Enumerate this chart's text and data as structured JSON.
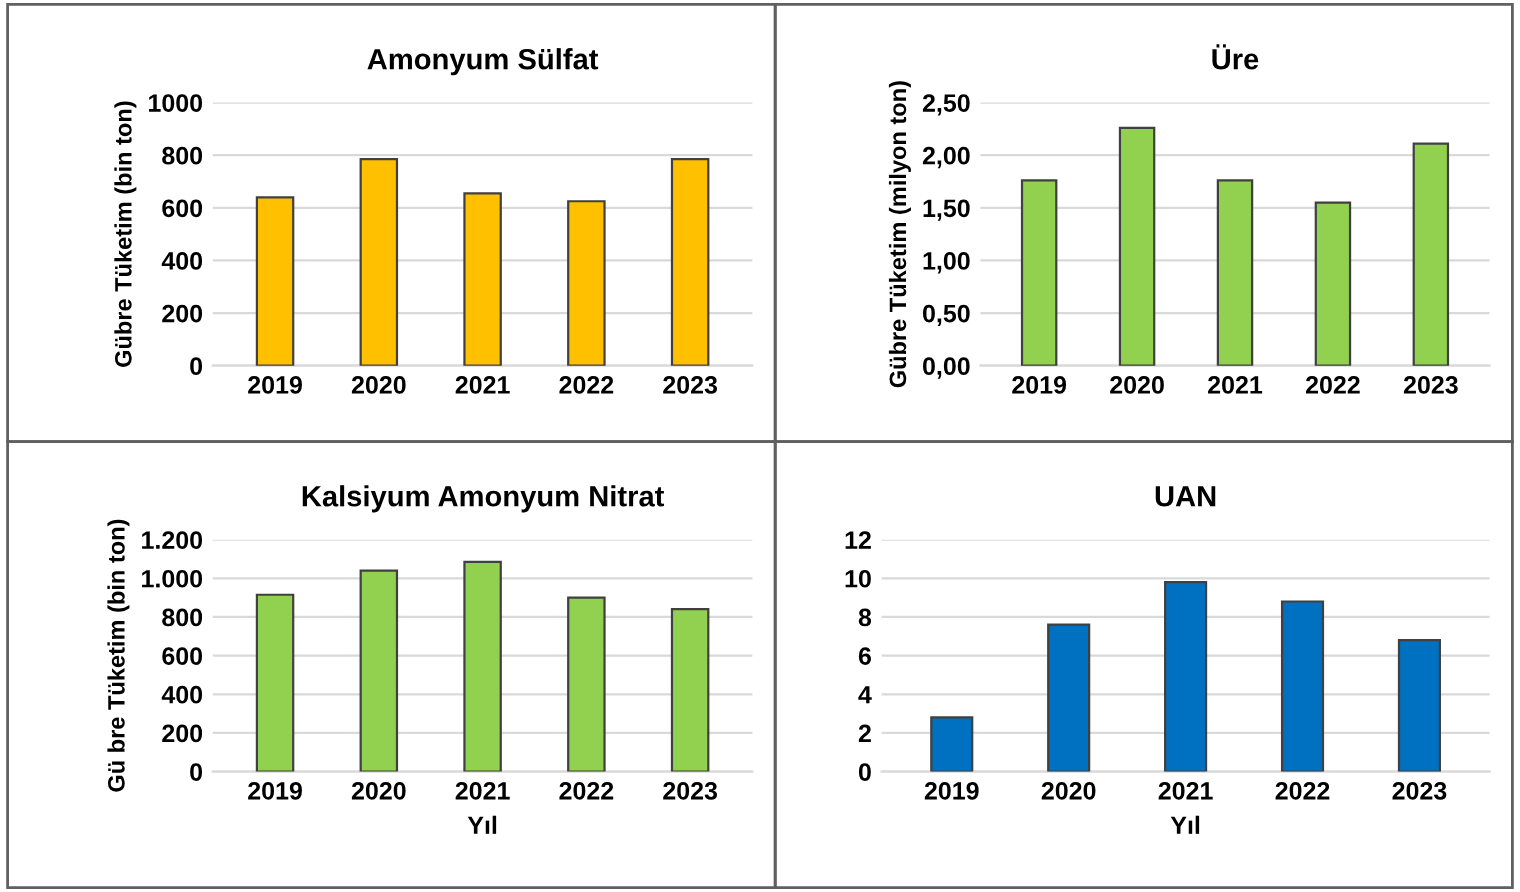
{
  "chart_data": [
    {
      "type": "bar",
      "title": "Amonyum Sülfat",
      "ylabel": "Gübre Tüketim (bin ton)",
      "categories": [
        "2019",
        "2020",
        "2021",
        "2022",
        "2023"
      ],
      "values": [
        640,
        785,
        655,
        625,
        785
      ],
      "color": "#ffc000",
      "ylim": [
        0,
        1000
      ],
      "yticks": [
        0,
        200,
        400,
        600,
        800,
        1000
      ],
      "grid": "y"
    },
    {
      "type": "bar",
      "title": "Üre",
      "ylabel": "Gübre Tüketim (milyon ton)",
      "categories": [
        "2019",
        "2020",
        "2021",
        "2022",
        "2023"
      ],
      "values": [
        1.76,
        2.26,
        1.76,
        1.55,
        2.11
      ],
      "color": "#92d050",
      "ylim": [
        0,
        2.5
      ],
      "yticks": [
        {
          "value": 0,
          "label": "0,00"
        },
        {
          "value": 0.5,
          "label": "0,50"
        },
        {
          "value": 1.0,
          "label": "1,00"
        },
        {
          "value": 1.5,
          "label": "1,50"
        },
        {
          "value": 2.0,
          "label": "2,00"
        },
        {
          "value": 2.5,
          "label": "2,50"
        }
      ],
      "grid": "y"
    },
    {
      "type": "bar",
      "title": "Kalsiyum Amonyum Nitrat",
      "xlabel": "Yıl",
      "ylabel": "Gü bre Tüketim (bin ton)",
      "categories": [
        "2019",
        "2020",
        "2021",
        "2022",
        "2023"
      ],
      "values": [
        915,
        1040,
        1085,
        900,
        840
      ],
      "color": "#92d050",
      "ylim": [
        0,
        1200
      ],
      "yticks": [
        0,
        200,
        400,
        600,
        800,
        {
          "value": 1000,
          "label": "1.000"
        },
        {
          "value": 1200,
          "label": "1.200"
        }
      ],
      "grid": "y"
    },
    {
      "type": "bar",
      "title": "UAN",
      "xlabel": "Yıl",
      "categories": [
        "2019",
        "2020",
        "2021",
        "2022",
        "2023"
      ],
      "values": [
        2.8,
        7.6,
        9.8,
        8.8,
        6.8
      ],
      "color": "#0070c0",
      "ylim": [
        0,
        12
      ],
      "yticks": [
        0,
        2,
        4,
        6,
        8,
        10,
        12
      ],
      "grid": "y"
    }
  ]
}
